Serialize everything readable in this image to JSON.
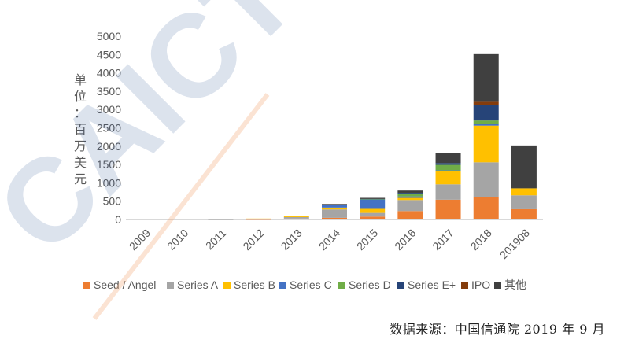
{
  "chart_data": {
    "type": "bar",
    "stacked": true,
    "categories": [
      "2009",
      "2010",
      "2011",
      "2012",
      "2013",
      "2014",
      "2015",
      "2016",
      "2017",
      "2018",
      "201908"
    ],
    "ylabel_chars": [
      "单",
      "位",
      "：",
      "百",
      "万",
      "美",
      "元"
    ],
    "ylim": [
      0,
      5000
    ],
    "yticks": [
      "0",
      "500",
      "1000",
      "1500",
      "2000",
      "2500",
      "3000",
      "3500",
      "4000",
      "4500",
      "5000"
    ],
    "grid": false,
    "legend_position": "bottom",
    "series": [
      {
        "name": "Seed / Angel",
        "color": "#ED7D31",
        "values": [
          0,
          0,
          0,
          5,
          25,
          45,
          80,
          230,
          540,
          620,
          280
        ]
      },
      {
        "name": "Series A",
        "color": "#A5A5A5",
        "values": [
          0,
          0,
          2,
          10,
          40,
          230,
          100,
          300,
          420,
          940,
          380
        ]
      },
      {
        "name": "Series B",
        "color": "#FFC000",
        "values": [
          0,
          0,
          0,
          10,
          30,
          50,
          110,
          60,
          360,
          1000,
          190
        ]
      },
      {
        "name": "Series C",
        "color": "#4472C4",
        "values": [
          0,
          0,
          0,
          0,
          5,
          70,
          260,
          40,
          20,
          40,
          0
        ]
      },
      {
        "name": "Series D",
        "color": "#70AD47",
        "values": [
          0,
          0,
          0,
          0,
          0,
          10,
          10,
          80,
          150,
          100,
          0
        ]
      },
      {
        "name": "Series E+",
        "color": "#264478",
        "values": [
          0,
          0,
          0,
          0,
          0,
          5,
          0,
          20,
          50,
          430,
          0
        ]
      },
      {
        "name": "IPO",
        "color": "#843C0C",
        "values": [
          0,
          0,
          0,
          0,
          0,
          0,
          0,
          0,
          0,
          80,
          0
        ]
      },
      {
        "name": "其他",
        "color": "#404040",
        "values": [
          0,
          0,
          0,
          0,
          5,
          15,
          30,
          60,
          270,
          1300,
          1170
        ]
      }
    ]
  },
  "watermark": {
    "text": "CAICT 中国"
  },
  "source": {
    "text": "数据来源：中国信通院  2019 年 9 月"
  }
}
